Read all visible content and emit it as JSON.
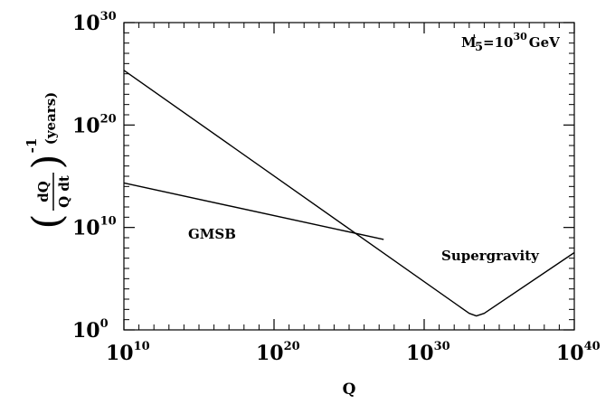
{
  "chart_data": {
    "type": "line",
    "title": "",
    "xlabel": "Q",
    "ylabel": {
      "numerator": "dQ",
      "denominator": "Q dt",
      "exponent": "-1",
      "units": "(years)"
    },
    "xscale": "log",
    "yscale": "log",
    "xlim": [
      10000000000.0,
      1e+40
    ],
    "ylim": [
      1,
      1e+30
    ],
    "grid": false,
    "legend": "none",
    "x_tick_labels": [
      {
        "base": "10",
        "exp": "10",
        "value": 10000000000.0
      },
      {
        "base": "10",
        "exp": "20",
        "value": 1e+20
      },
      {
        "base": "10",
        "exp": "30",
        "value": 1e+30
      },
      {
        "base": "10",
        "exp": "40",
        "value": 1e+40
      }
    ],
    "y_tick_labels": [
      {
        "base": "10",
        "exp": "0",
        "value": 1
      },
      {
        "base": "10",
        "exp": "10",
        "value": 10000000000.0
      },
      {
        "base": "10",
        "exp": "20",
        "value": 1e+20
      },
      {
        "base": "10",
        "exp": "30",
        "value": 1e+30
      }
    ],
    "annotation": {
      "m": "M",
      "prime": "'",
      "sub": "5",
      "eq": "=10",
      "exp": "30",
      "unit": "GeV"
    },
    "series": [
      {
        "name": "Supergravity",
        "x": [
          10000000000.0,
          1e+33,
          3e+33,
          1e+34,
          1e+40
        ],
        "y": [
          2.2e+25,
          41.0,
          23.0,
          41.0,
          35000000.0
        ]
      },
      {
        "name": "GMSB",
        "x": [
          10000000000.0,
          2e+27
        ],
        "y": [
          220000000000000.0,
          680000000.0
        ]
      }
    ]
  }
}
